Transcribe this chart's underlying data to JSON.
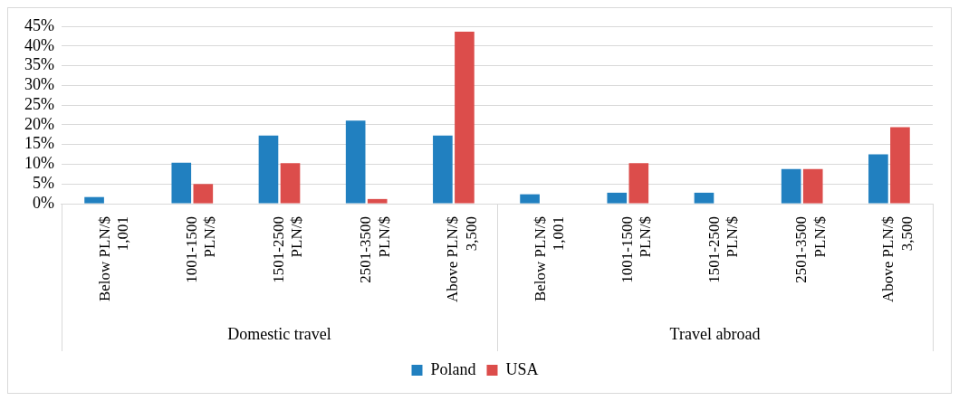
{
  "chart_data": {
    "type": "bar",
    "categories": [
      "Below PLN/$\n1,001",
      "1001-1500\nPLN/$",
      "1501-2500\nPLN/$",
      "2501-3500\nPLN/$",
      "Above PLN/$\n3,500",
      "Below PLN/$\n1,001",
      "1001-1500\nPLN/$",
      "1501-2500\nPLN/$",
      "2501-3500\nPLN/$",
      "Above PLN/$\n3,500"
    ],
    "series": [
      {
        "name": "Poland",
        "color": "#2180c0",
        "values": [
          1.7,
          10.4,
          17.3,
          21.1,
          17.3,
          2.4,
          2.8,
          2.8,
          8.8,
          12.5
        ]
      },
      {
        "name": "USA",
        "color": "#dc4d4b",
        "values": [
          0,
          5.0,
          10.3,
          1.2,
          43.6,
          0,
          10.3,
          0,
          8.8,
          19.4
        ]
      }
    ],
    "ylim": [
      0,
      45
    ],
    "yticks": [
      {
        "value": 0,
        "label": "0%"
      },
      {
        "value": 5,
        "label": "5%"
      },
      {
        "value": 10,
        "label": "10%"
      },
      {
        "value": 15,
        "label": "15%"
      },
      {
        "value": 20,
        "label": "20%"
      },
      {
        "value": 25,
        "label": "25%"
      },
      {
        "value": 30,
        "label": "30%"
      },
      {
        "value": 35,
        "label": "35%"
      },
      {
        "value": 40,
        "label": "40%"
      },
      {
        "value": 45,
        "label": "45%"
      }
    ],
    "annotations": [
      "Domestic travel",
      "Travel abroad"
    ],
    "grid": "y",
    "legend": "bottom"
  }
}
